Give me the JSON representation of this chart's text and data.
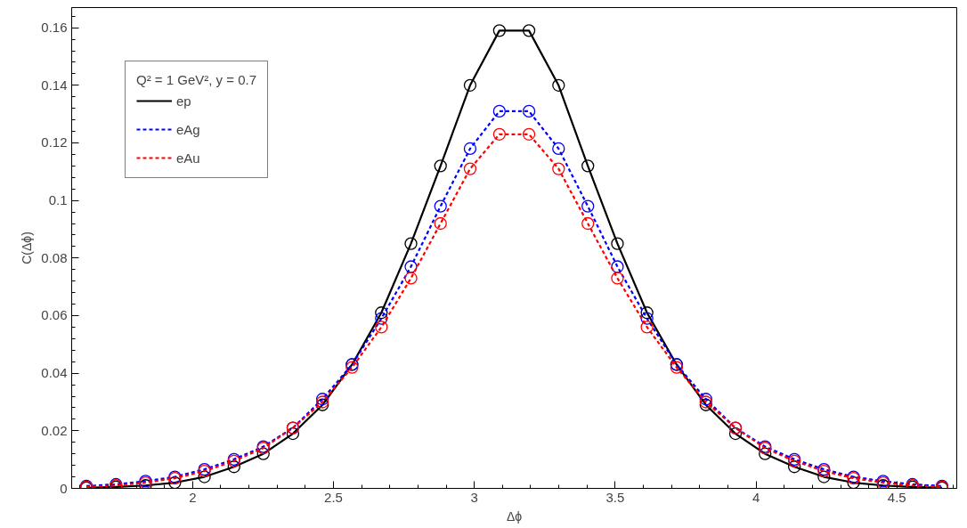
{
  "chart_data": {
    "type": "line",
    "xlabel": "Δϕ",
    "ylabel": "C(Δϕ)",
    "legend_title": "Q² = 1 GeV², y = 0.7",
    "x": [
      1.623,
      1.728,
      1.833,
      1.937,
      2.042,
      2.147,
      2.251,
      2.356,
      2.461,
      2.566,
      2.67,
      2.775,
      2.88,
      2.985,
      3.089,
      3.194,
      3.299,
      3.403,
      3.508,
      3.613,
      3.718,
      3.822,
      3.927,
      4.032,
      4.136,
      4.241,
      4.346,
      4.451,
      4.555,
      4.66
    ],
    "series": [
      {
        "name": "ep",
        "color": "#000000",
        "line_style": "solid",
        "values": [
          0.0002,
          0.0005,
          0.001,
          0.002,
          0.004,
          0.0075,
          0.012,
          0.019,
          0.029,
          0.043,
          0.061,
          0.085,
          0.112,
          0.14,
          0.159,
          0.159,
          0.14,
          0.112,
          0.085,
          0.061,
          0.043,
          0.029,
          0.019,
          0.012,
          0.0075,
          0.004,
          0.002,
          0.001,
          0.0005,
          0.0002
        ]
      },
      {
        "name": "eAg",
        "color": "#0000ff",
        "line_style": "dashed",
        "values": [
          0.0008,
          0.0014,
          0.0025,
          0.004,
          0.0066,
          0.0101,
          0.0145,
          0.021,
          0.031,
          0.043,
          0.059,
          0.077,
          0.098,
          0.118,
          0.131,
          0.131,
          0.118,
          0.098,
          0.077,
          0.059,
          0.043,
          0.031,
          0.021,
          0.0145,
          0.0101,
          0.0066,
          0.004,
          0.0025,
          0.0014,
          0.0008
        ]
      },
      {
        "name": "eAu",
        "color": "#ff0000",
        "line_style": "dashed",
        "values": [
          0.0005,
          0.001,
          0.002,
          0.0035,
          0.006,
          0.0095,
          0.014,
          0.021,
          0.03,
          0.042,
          0.056,
          0.073,
          0.092,
          0.111,
          0.123,
          0.123,
          0.111,
          0.092,
          0.073,
          0.056,
          0.042,
          0.03,
          0.021,
          0.014,
          0.0095,
          0.006,
          0.0035,
          0.002,
          0.001,
          0.0005
        ]
      }
    ],
    "xlim": [
      1.5708,
      4.7124
    ],
    "ylim": [
      0,
      0.167
    ],
    "xticks": [
      2,
      2.5,
      3,
      3.5,
      4,
      4.5
    ],
    "yticks": [
      0,
      0.02,
      0.04,
      0.06,
      0.08,
      0.1,
      0.12,
      0.14,
      0.16
    ],
    "marker": "circle",
    "grid": false,
    "legend": "top left"
  }
}
